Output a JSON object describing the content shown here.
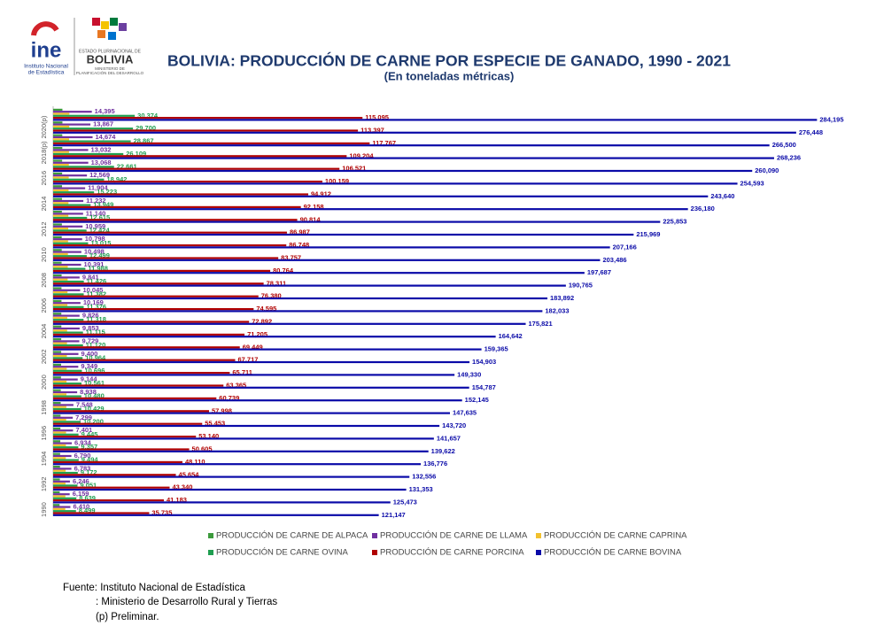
{
  "logos": {
    "ine": "ine",
    "ine_name_1": "Instituto Nacional",
    "ine_name_2": "de Estadística",
    "state": "ESTADO PLURINACIONAL DE",
    "bolivia": "BOLIVIA",
    "ministry_1": "MINISTERIO DE",
    "ministry_2": "PLANIFICACIÓN DEL DESARROLLO"
  },
  "source": [
    "Fuente: Instituto Nacional de Estadística",
    ": Ministerio de Desarrollo Rural y Tierras",
    "(p) Preliminar."
  ],
  "chart_data": {
    "type": "hbar",
    "title": "BOLIVIA: PRODUCCIÓN DE CARNE POR ESPECIE DE GANADO, 1990 - 2021",
    "subtitle": "(En toneladas métricas)",
    "categories": [
      "1990",
      null,
      "1992",
      null,
      "1994",
      null,
      "1996",
      null,
      "1998",
      null,
      "2000",
      null,
      "2002",
      null,
      "2004",
      null,
      "2006",
      null,
      "2008",
      null,
      "2010",
      null,
      "2012",
      null,
      "2014",
      null,
      "2016",
      null,
      "2018(p)",
      null,
      "2020(p)",
      null
    ],
    "xlim": [
      0,
      290000
    ],
    "legend": "bottom",
    "series": [
      {
        "name": "PRODUCCIÓN DE CARNE DE ALPACA",
        "color": "#3c9a3c",
        "values": [
          2400,
          2450,
          2500,
          2550,
          2600,
          2650,
          2700,
          2750,
          2800,
          2850,
          2900,
          2950,
          3000,
          3000,
          3050,
          3050,
          3100,
          3100,
          3150,
          3150,
          3200,
          3200,
          3250,
          3250,
          3300,
          3300,
          3350,
          3350,
          3400,
          3400,
          3450,
          3450
        ]
      },
      {
        "name": "PRODUCCIÓN DE CARNE DE LLAMA",
        "color": "#7030a0",
        "values": [
          6410,
          6159,
          6246,
          6783,
          6790,
          6934,
          7401,
          7299,
          7548,
          8938,
          9144,
          9349,
          9400,
          9729,
          9853,
          9826,
          10169,
          10045,
          9841,
          10391,
          10498,
          10798,
          10959,
          11140,
          11232,
          11904,
          12569,
          13068,
          13032,
          14674,
          13867,
          14395
        ],
        "value_labels": [
          "6,410",
          "6,159",
          "6,246",
          "6,783",
          "6,790",
          "6,934",
          "7,401",
          "7,299",
          "7,548",
          "8,938",
          "9,144",
          "9,349",
          "9,400",
          "9,729",
          "9,853",
          "9,826",
          "10,169",
          "10,045",
          "9,841",
          "10,391",
          "10,498",
          "10,798",
          "10,959",
          "11,140",
          "11,232",
          "11,904",
          "12,569",
          "13,068",
          "13,032",
          "14,674",
          "13,867",
          "14,395"
        ]
      },
      {
        "name": "PRODUCCIÓN DE CARNE CAPRINA",
        "color": "#f2c12e",
        "values": [
          4500,
          4550,
          4600,
          4650,
          4700,
          4750,
          4800,
          4850,
          4900,
          4950,
          5000,
          5050,
          5100,
          5150,
          5200,
          5250,
          5300,
          5350,
          5400,
          5450,
          5500,
          5550,
          5600,
          5650,
          5700,
          5750,
          5800,
          5850,
          5900,
          5950,
          6000,
          6050
        ]
      },
      {
        "name": "PRODUCCIÓN DE CARNE OVINA",
        "color": "#1f9e50",
        "values": [
          8499,
          8639,
          9051,
          9172,
          9494,
          9357,
          9445,
          10200,
          10429,
          10480,
          10561,
          10696,
          10964,
          11120,
          11115,
          11318,
          11376,
          11382,
          11426,
          11988,
          12499,
          13015,
          12424,
          12615,
          13949,
          15223,
          18942,
          22661,
          26109,
          28867,
          29700,
          30374
        ],
        "value_labels": [
          "8,499",
          "8,639",
          "9,051",
          "9,172",
          "9,494",
          "9,357",
          "9,445",
          "10,200",
          "10,429",
          "10,480",
          "10,561",
          "10,696",
          "10,964",
          "11,120",
          "11,115",
          "11,318",
          "11,376",
          "11,382",
          "11,426",
          "11,988",
          "12,499",
          "13,015",
          "12,424",
          "12,615",
          "13,949",
          "15,223",
          "18,942",
          "22,661",
          "26,109",
          "28,867",
          "29,700",
          "30,374"
        ]
      },
      {
        "name": "PRODUCCIÓN DE CARNE PORCINA",
        "color": "#b00000",
        "values": [
          35735,
          41183,
          43340,
          45654,
          48110,
          50605,
          53140,
          55453,
          57998,
          60739,
          63365,
          65711,
          67717,
          69449,
          71205,
          72892,
          74595,
          76380,
          78311,
          80764,
          83757,
          86748,
          86987,
          90814,
          92158,
          94912,
          100159,
          106521,
          109204,
          117767,
          113397,
          115095
        ],
        "value_labels": [
          "35,735",
          "41,183",
          "43,340",
          "45,654",
          "48,110",
          "50,605",
          "53,140",
          "55,453",
          "57,998",
          "60,739",
          "63,365",
          "65,711",
          "67,717",
          "69,449",
          "71,205",
          "72,892",
          "74,595",
          "76,380",
          "78,311",
          "80,764",
          "83,757",
          "86,748",
          "86,987",
          "90,814",
          "92,158",
          "94,912",
          "100,159",
          "106,521",
          "109,204",
          "117,767",
          "113,397",
          "115,095"
        ]
      },
      {
        "name": "PRODUCCIÓN DE CARNE BOVINA",
        "color": "#0a0aa8",
        "values": [
          121147,
          125473,
          131353,
          132556,
          136776,
          139622,
          141657,
          143720,
          147635,
          152145,
          154787,
          149330,
          154903,
          159365,
          164642,
          175821,
          182033,
          183892,
          190765,
          197687,
          203486,
          207166,
          215969,
          225853,
          236180,
          243640,
          254593,
          260090,
          268236,
          266500,
          276448,
          284195
        ],
        "value_labels": [
          "121,147",
          "125,473",
          "131,353",
          "132,556",
          "136,776",
          "139,622",
          "141,657",
          "143,720",
          "147,635",
          "152,145",
          "154,787",
          "149,330",
          "154,903",
          "159,365",
          "164,642",
          "175,821",
          "182,033",
          "183,892",
          "190,765",
          "197,687",
          "203,486",
          "207,166",
          "215,969",
          "225,853",
          "236,180",
          "243,640",
          "254,593",
          "260,090",
          "268,236",
          "266,500",
          "276,448",
          "284,195"
        ]
      }
    ]
  }
}
